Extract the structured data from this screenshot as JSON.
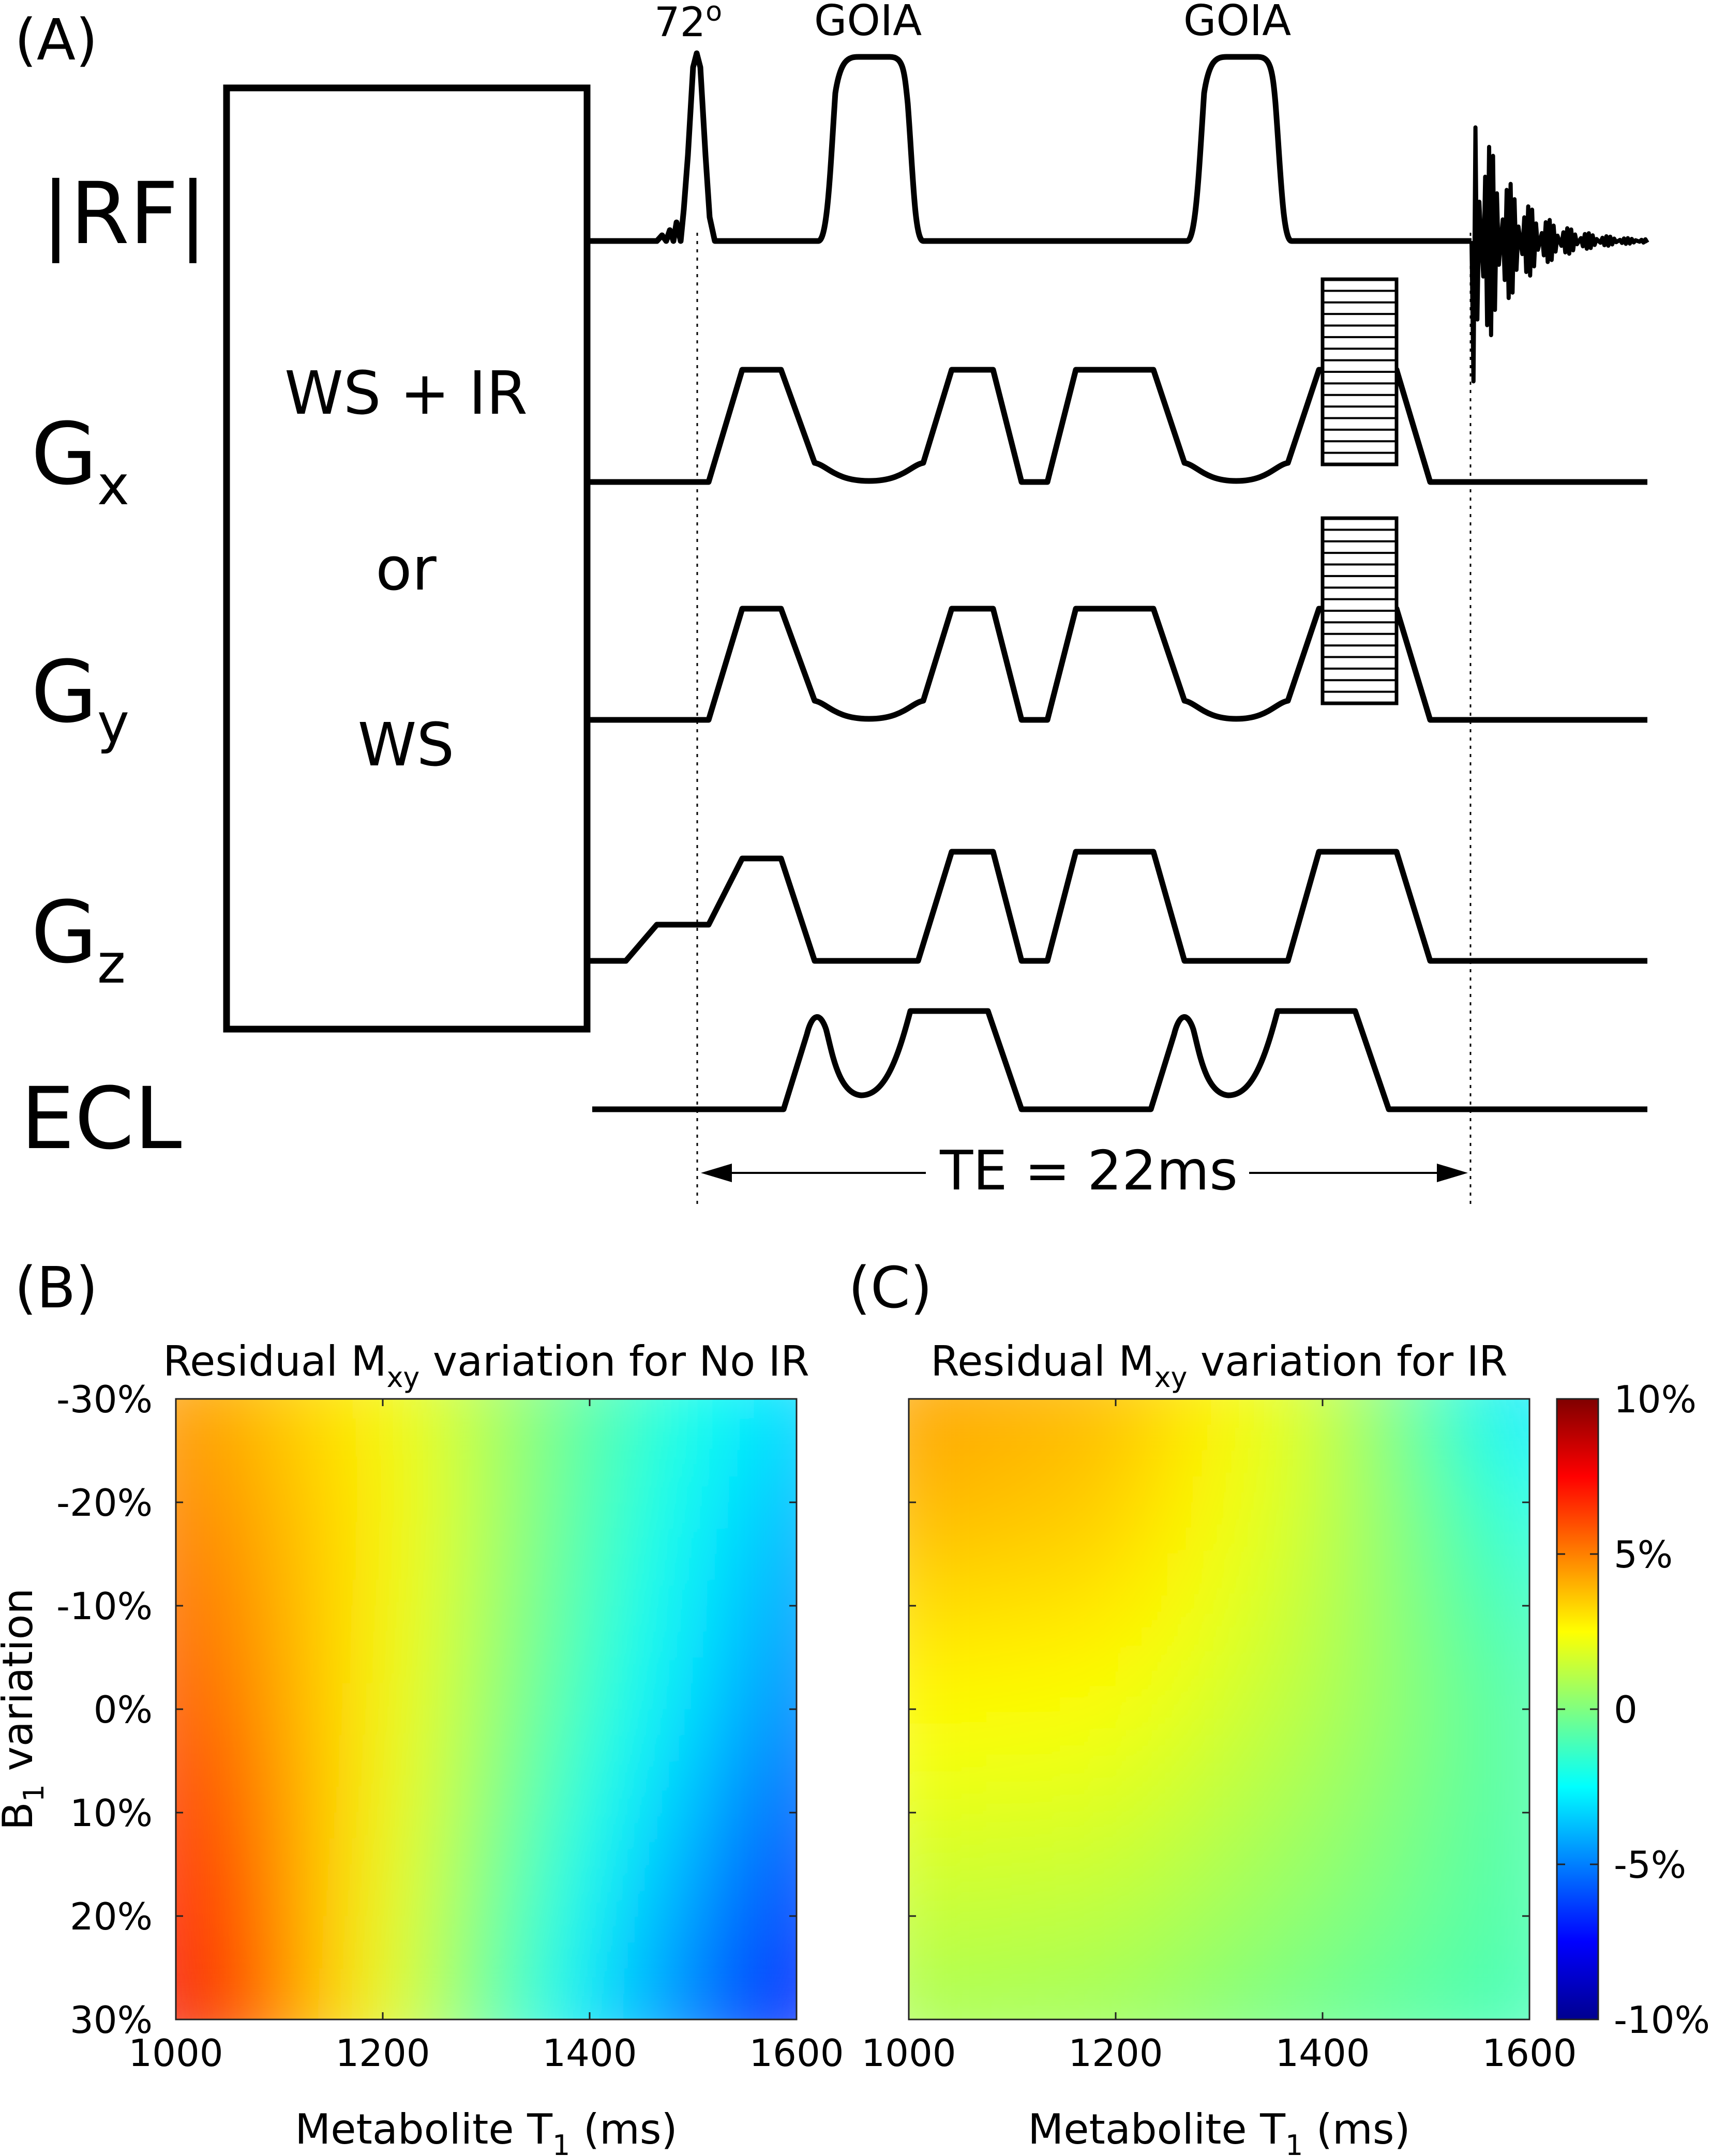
{
  "panelA": {
    "label": "(A)",
    "rows": {
      "rf": "|RF|",
      "gx": {
        "base": "G",
        "sub": "x"
      },
      "gy": {
        "base": "G",
        "sub": "y"
      },
      "gz": {
        "base": "G",
        "sub": "z"
      },
      "ecl": "ECL"
    },
    "box": {
      "line1": "WS + IR",
      "line2": "or",
      "line3": "WS"
    },
    "pulses": {
      "excite": "72",
      "excite_deg": "o",
      "goia1": "GOIA",
      "goia2": "GOIA"
    },
    "te": "TE = 22ms"
  },
  "panelB": {
    "label": "(B)",
    "title_pre": "Residual M",
    "title_sub": "xy",
    "title_post": " variation for No IR"
  },
  "panelC": {
    "label": "(C)",
    "title_pre": "Residual M",
    "title_sub": "xy",
    "title_post": " variation for IR"
  },
  "axes": {
    "xlabel_pre": "Metabolite T",
    "xlabel_sub": "1",
    "xlabel_post": " (ms)",
    "ylabel_pre": "B",
    "ylabel_sub": "1",
    "ylabel_post": " variation",
    "xticks": [
      "1000",
      "1200",
      "1400",
      "1600"
    ],
    "yticks": [
      "-30%",
      "-20%",
      "-10%",
      "0%",
      "10%",
      "20%",
      "30%"
    ]
  },
  "colorbar": {
    "ticks": [
      "10%",
      "5%",
      "0",
      "-5%",
      "-10%"
    ],
    "low": "#00008f",
    "high": "#800000"
  },
  "chart_data": [
    {
      "type": "heatmap",
      "title": "Residual Mxy variation for No IR",
      "xlabel": "Metabolite T1 (ms)",
      "ylabel": "B1 variation",
      "x": [
        1000,
        1200,
        1400,
        1600
      ],
      "y": [
        -30,
        -20,
        -10,
        0,
        10,
        20,
        30
      ],
      "xlim": [
        1000,
        1600
      ],
      "ylim": [
        -30,
        30
      ],
      "values": [
        [
          4.5,
          2.6,
          -0.8,
          -3.3
        ],
        [
          5.0,
          2.8,
          -1.0,
          -4.0
        ],
        [
          5.5,
          2.7,
          -1.2,
          -4.5
        ],
        [
          6.0,
          2.6,
          -1.5,
          -5.0
        ],
        [
          6.7,
          2.5,
          -2.0,
          -5.8
        ],
        [
          7.3,
          2.3,
          -2.6,
          -6.5
        ],
        [
          8.0,
          2.1,
          -3.0,
          -7.3
        ]
      ],
      "clim": [
        -10,
        10
      ]
    },
    {
      "type": "heatmap",
      "title": "Residual Mxy variation for IR",
      "xlabel": "Metabolite T1 (ms)",
      "ylabel": "B1 variation",
      "x": [
        1000,
        1200,
        1400,
        1600
      ],
      "y": [
        -30,
        -20,
        -10,
        0,
        10,
        20,
        30
      ],
      "xlim": [
        1000,
        1600
      ],
      "ylim": [
        -30,
        30
      ],
      "values": [
        [
          4.3,
          3.8,
          1.5,
          -3.3
        ],
        [
          4.0,
          3.5,
          1.4,
          -2.2
        ],
        [
          3.2,
          3.0,
          1.2,
          -1.5
        ],
        [
          2.6,
          2.4,
          1.0,
          -1.0
        ],
        [
          2.0,
          1.8,
          0.6,
          -1.0
        ],
        [
          1.4,
          1.2,
          0.2,
          -1.0
        ],
        [
          0.8,
          0.6,
          -0.4,
          -1.2
        ]
      ],
      "clim": [
        -10,
        10
      ]
    }
  ]
}
